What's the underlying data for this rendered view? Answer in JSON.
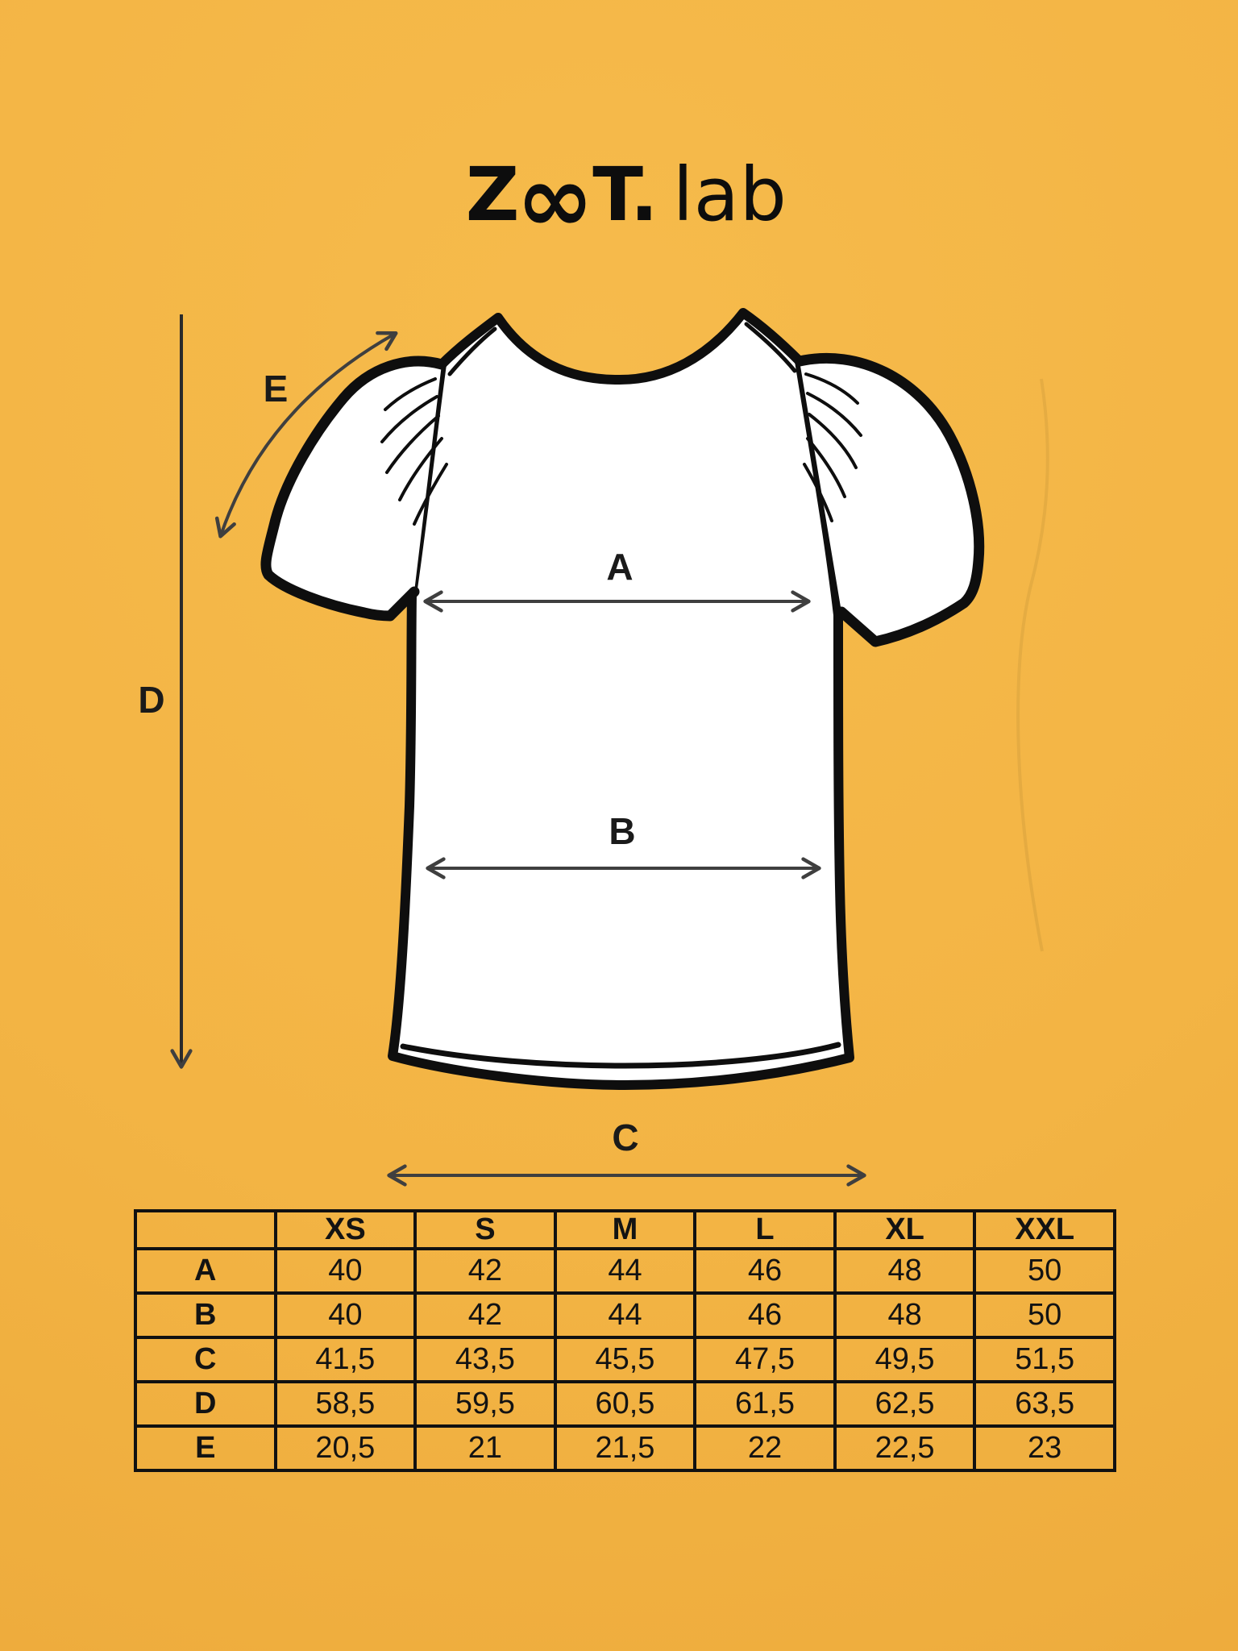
{
  "colors": {
    "background": "#F3B444",
    "ink": "#111111",
    "arrow": "#3F3F3F",
    "shirt_fill": "#FFFFFF"
  },
  "logo": {
    "z": "Z",
    "oo_ligature": "∞",
    "t_dot": "T.",
    "suffix": "lab"
  },
  "diagram": {
    "labels": {
      "a": "A",
      "b": "B",
      "c": "C",
      "d": "D",
      "e": "E"
    }
  },
  "size_table": {
    "corner": "",
    "columns": [
      "XS",
      "S",
      "M",
      "L",
      "XL",
      "XXL"
    ],
    "rows": [
      {
        "label": "A",
        "values": [
          "40",
          "42",
          "44",
          "46",
          "48",
          "50"
        ]
      },
      {
        "label": "B",
        "values": [
          "40",
          "42",
          "44",
          "46",
          "48",
          "50"
        ]
      },
      {
        "label": "C",
        "values": [
          "41,5",
          "43,5",
          "45,5",
          "47,5",
          "49,5",
          "51,5"
        ]
      },
      {
        "label": "D",
        "values": [
          "58,5",
          "59,5",
          "60,5",
          "61,5",
          "62,5",
          "63,5"
        ]
      },
      {
        "label": "E",
        "values": [
          "20,5",
          "21",
          "21,5",
          "22",
          "22,5",
          "23"
        ]
      }
    ]
  }
}
